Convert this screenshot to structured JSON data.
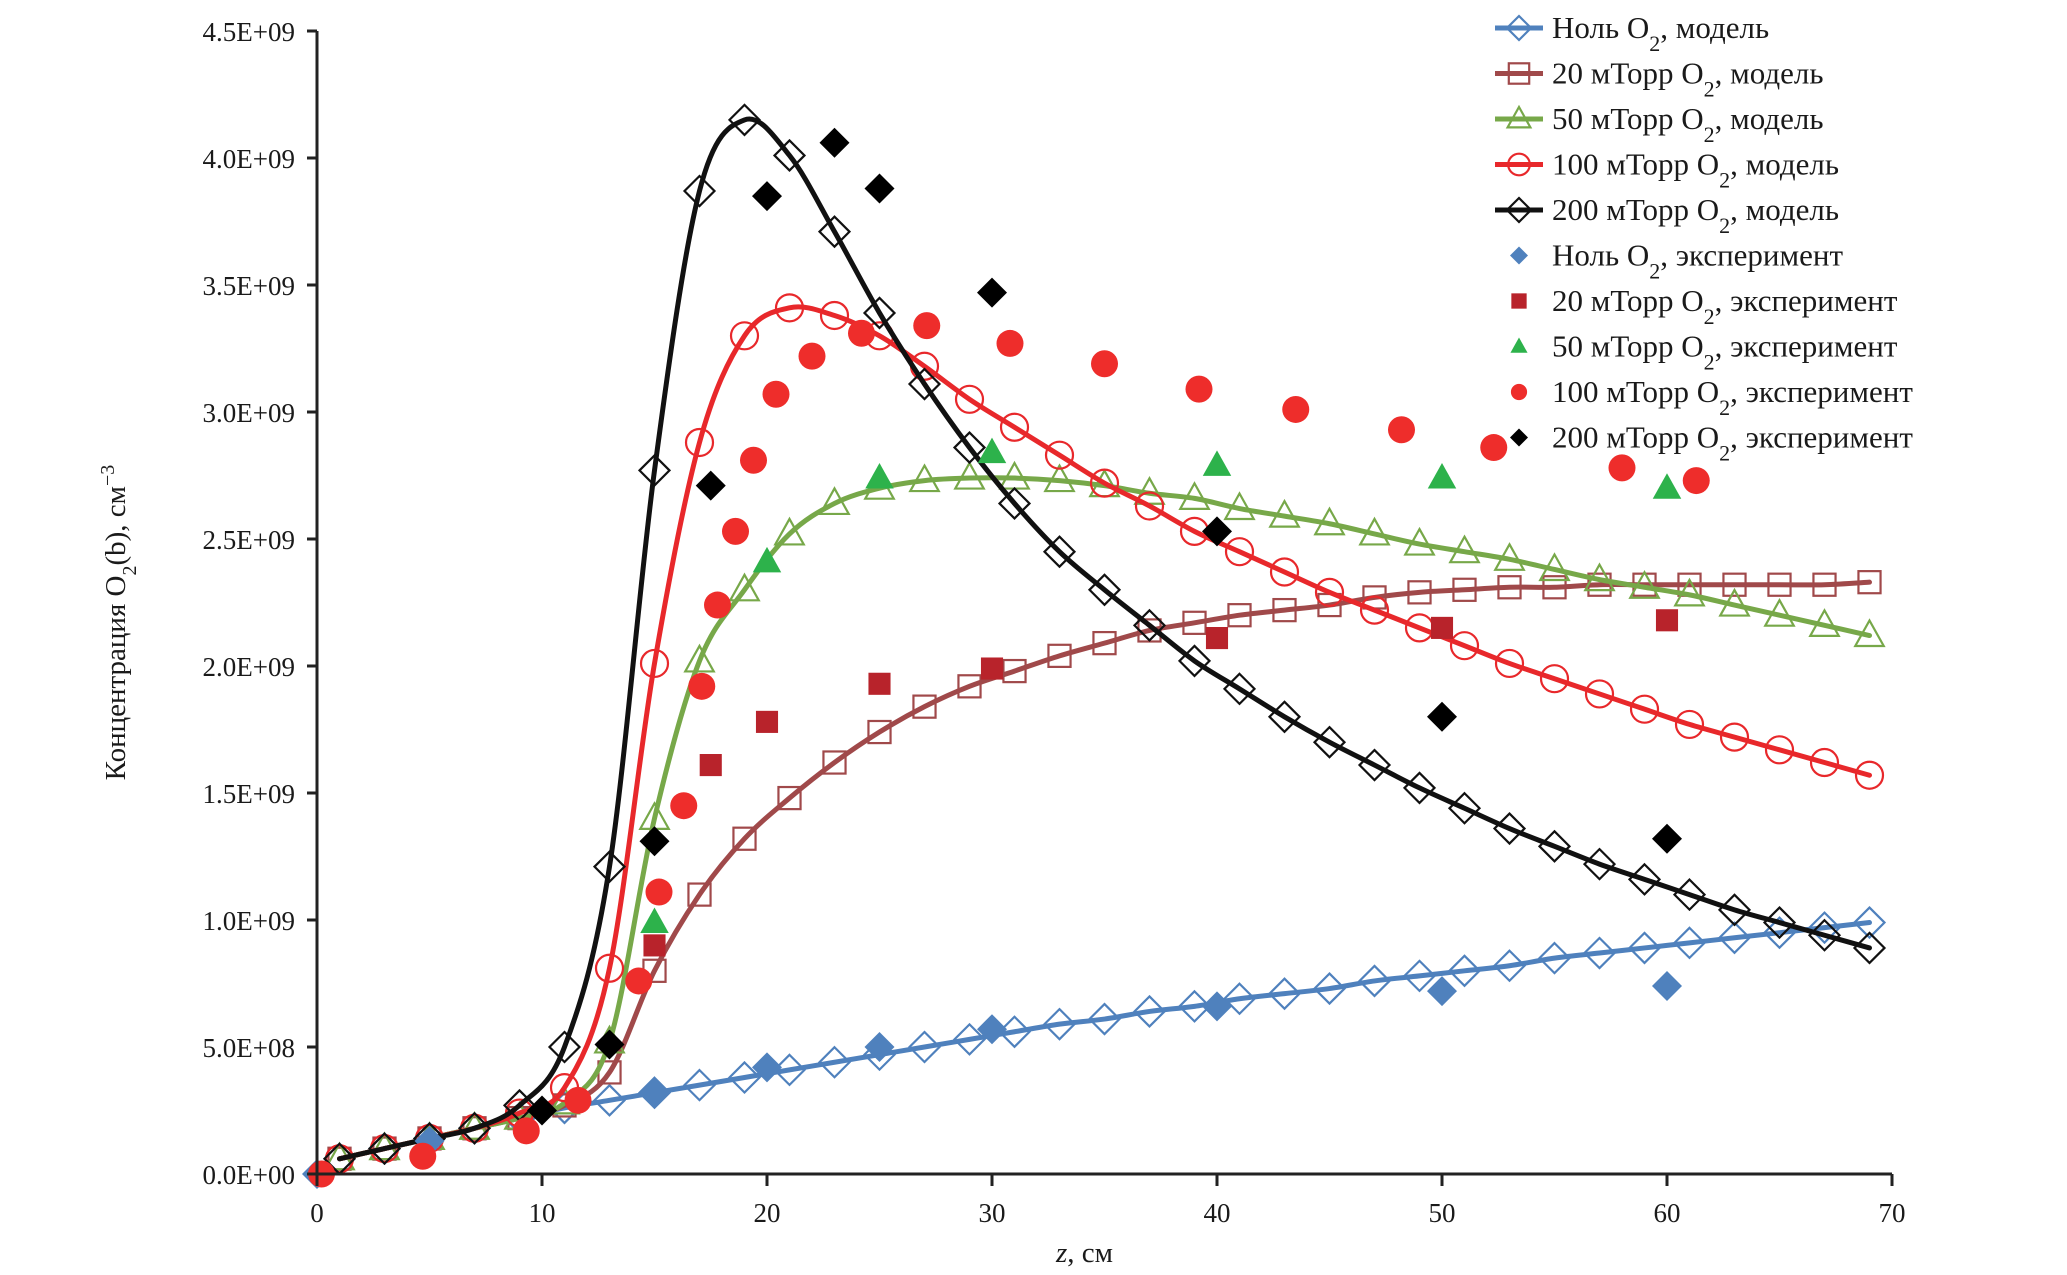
{
  "chart_data": {
    "type": "line",
    "title": "",
    "xlabel": "z, см",
    "xlabel_italic_part": "z",
    "ylabel": "Концентрация O2(b), см−3",
    "xlim": [
      0,
      70
    ],
    "ylim": [
      0,
      4500000000
    ],
    "x_ticks": [
      0,
      10,
      20,
      30,
      40,
      50,
      60,
      70
    ],
    "x_tick_labels": [
      "0",
      "10",
      "20",
      "30",
      "40",
      "50",
      "60",
      "70"
    ],
    "y_ticks": [
      0,
      500000000,
      1000000000,
      1500000000,
      2000000000,
      2500000000,
      3000000000,
      3500000000,
      4000000000,
      4500000000
    ],
    "y_tick_labels": [
      "0.0E+00",
      "5.0E+08",
      "1.0E+09",
      "1.5E+09",
      "2.0E+09",
      "2.5E+09",
      "3.0E+09",
      "3.5E+09",
      "4.0E+09",
      "4.5E+09"
    ],
    "grid": false,
    "legend_position": "top-right",
    "series": [
      {
        "name": "Ноль O2, модель",
        "label_prefix": "Ноль O",
        "label_sub": "2",
        "label_suffix": ", модель",
        "kind": "model",
        "marker": "diamond-open",
        "color": "#4f81bd",
        "x": [
          1,
          3,
          5,
          7,
          9,
          11,
          13,
          15,
          17,
          19,
          21,
          23,
          25,
          27,
          29,
          31,
          33,
          35,
          37,
          39,
          41,
          43,
          45,
          47,
          49,
          51,
          53,
          55,
          57,
          59,
          61,
          63,
          65,
          67,
          69
        ],
        "y": [
          60000000.0,
          100000000.0,
          140000000.0,
          180000000.0,
          220000000.0,
          260000000.0,
          290000000.0,
          320000000.0,
          350000000.0,
          380000000.0,
          410000000.0,
          440000000.0,
          470000000.0,
          500000000.0,
          530000000.0,
          560000000.0,
          590000000.0,
          610000000.0,
          640000000.0,
          660000000.0,
          690000000.0,
          710000000.0,
          730000000.0,
          760000000.0,
          780000000.0,
          800000000.0,
          820000000.0,
          850000000.0,
          870000000.0,
          890000000.0,
          910000000.0,
          930000000.0,
          950000000.0,
          970000000.0,
          990000000.0
        ]
      },
      {
        "name": "20 мТорр O2, модель",
        "label_prefix": "20 мТорр O",
        "label_sub": "2",
        "label_suffix": ", модель",
        "kind": "model",
        "marker": "square-open",
        "color": "#a0494a",
        "x": [
          1,
          3,
          5,
          7,
          9,
          11,
          13,
          15,
          17,
          19,
          21,
          23,
          25,
          27,
          29,
          31,
          33,
          35,
          37,
          39,
          41,
          43,
          45,
          47,
          49,
          51,
          53,
          55,
          57,
          59,
          61,
          63,
          65,
          67,
          69
        ],
        "y": [
          60000000.0,
          100000000.0,
          140000000.0,
          180000000.0,
          220000000.0,
          270000000.0,
          400000000.0,
          800000000.0,
          1100000000.0,
          1320000000.0,
          1480000000.0,
          1620000000.0,
          1740000000.0,
          1840000000.0,
          1920000000.0,
          1980000000.0,
          2040000000.0,
          2090000000.0,
          2140000000.0,
          2170000000.0,
          2200000000.0,
          2220000000.0,
          2240000000.0,
          2270000000.0,
          2290000000.0,
          2300000000.0,
          2310000000.0,
          2310000000.0,
          2320000000.0,
          2320000000.0,
          2320000000.0,
          2320000000.0,
          2320000000.0,
          2320000000.0,
          2330000000.0
        ]
      },
      {
        "name": "50 мТорр O2, модель",
        "label_prefix": "50 мТорр O",
        "label_sub": "2",
        "label_suffix": ", модель",
        "kind": "model",
        "marker": "triangle-open",
        "color": "#77a849",
        "x": [
          1,
          3,
          5,
          7,
          9,
          11,
          13,
          15,
          17,
          19,
          21,
          23,
          25,
          27,
          29,
          31,
          33,
          35,
          37,
          39,
          41,
          43,
          45,
          47,
          49,
          51,
          53,
          55,
          57,
          59,
          61,
          63,
          65,
          67,
          69
        ],
        "y": [
          60000000.0,
          100000000.0,
          140000000.0,
          180000000.0,
          220000000.0,
          280000000.0,
          520000000.0,
          1400000000.0,
          2020000000.0,
          2300000000.0,
          2520000000.0,
          2640000000.0,
          2700000000.0,
          2730000000.0,
          2740000000.0,
          2740000000.0,
          2730000000.0,
          2710000000.0,
          2680000000.0,
          2660000000.0,
          2620000000.0,
          2590000000.0,
          2560000000.0,
          2520000000.0,
          2480000000.0,
          2450000000.0,
          2420000000.0,
          2380000000.0,
          2340000000.0,
          2310000000.0,
          2280000000.0,
          2240000000.0,
          2200000000.0,
          2160000000.0,
          2120000000.0
        ]
      },
      {
        "name": "100 мТорр O2, модель",
        "label_prefix": "100 мТорр O",
        "label_sub": "2",
        "label_suffix": ", модель",
        "kind": "model",
        "marker": "circle-open",
        "color": "#e8282b",
        "x": [
          1,
          3,
          5,
          7,
          9,
          11,
          13,
          15,
          17,
          19,
          21,
          23,
          25,
          27,
          29,
          31,
          33,
          35,
          37,
          39,
          41,
          43,
          45,
          47,
          49,
          51,
          53,
          55,
          57,
          59,
          61,
          63,
          65,
          67,
          69
        ],
        "y": [
          60000000.0,
          100000000.0,
          140000000.0,
          180000000.0,
          240000000.0,
          340000000.0,
          810000000.0,
          2010000000.0,
          2880000000.0,
          3300000000.0,
          3410000000.0,
          3380000000.0,
          3300000000.0,
          3180000000.0,
          3050000000.0,
          2940000000.0,
          2830000000.0,
          2720000000.0,
          2630000000.0,
          2530000000.0,
          2450000000.0,
          2370000000.0,
          2290000000.0,
          2220000000.0,
          2150000000.0,
          2080000000.0,
          2010000000.0,
          1950000000.0,
          1890000000.0,
          1830000000.0,
          1770000000.0,
          1720000000.0,
          1670000000.0,
          1620000000.0,
          1570000000.0
        ]
      },
      {
        "name": "200 мТорр O2, модель",
        "label_prefix": "200 мТорр O",
        "label_sub": "2",
        "label_suffix": ", модель",
        "kind": "model",
        "marker": "diamond-open",
        "color": "#111111",
        "x": [
          1,
          3,
          5,
          7,
          9,
          11,
          13,
          15,
          17,
          19,
          21,
          23,
          25,
          27,
          29,
          31,
          33,
          35,
          37,
          39,
          41,
          43,
          45,
          47,
          49,
          51,
          53,
          55,
          57,
          59,
          61,
          63,
          65,
          67,
          69
        ],
        "y": [
          60000000.0,
          100000000.0,
          140000000.0,
          180000000.0,
          270000000.0,
          500000000.0,
          1210000000.0,
          2770000000.0,
          3870000000.0,
          4150000000.0,
          4010000000.0,
          3710000000.0,
          3390000000.0,
          3110000000.0,
          2860000000.0,
          2640000000.0,
          2450000000.0,
          2300000000.0,
          2160000000.0,
          2020000000.0,
          1910000000.0,
          1800000000.0,
          1700000000.0,
          1610000000.0,
          1520000000.0,
          1440000000.0,
          1360000000.0,
          1290000000.0,
          1220000000.0,
          1160000000.0,
          1100000000.0,
          1040000000.0,
          990000000.0,
          940000000.0,
          890000000.0
        ]
      },
      {
        "name": "Ноль O2, эксперимент",
        "label_prefix": "Ноль O",
        "label_sub": "2",
        "label_suffix": ", эксперимент",
        "kind": "experiment",
        "marker": "diamond-filled",
        "color": "#4f81bd",
        "x": [
          0,
          5,
          15,
          20,
          25,
          30,
          40,
          50,
          60
        ],
        "y": [
          0.0,
          130000000.0,
          320000000.0,
          420000000.0,
          500000000.0,
          570000000.0,
          660000000.0,
          720000000.0,
          740000000.0
        ]
      },
      {
        "name": "20 мТорр O2, эксперимент",
        "label_prefix": "20 мТорр O",
        "label_sub": "2",
        "label_suffix": ", эксперимент",
        "kind": "experiment",
        "marker": "square-filled",
        "color": "#b8232b",
        "x": [
          15,
          17.5,
          20,
          25,
          30,
          40,
          50,
          60
        ],
        "y": [
          900000000.0,
          1610000000.0,
          1780000000.0,
          1930000000.0,
          1990000000.0,
          2110000000.0,
          2150000000.0,
          2180000000.0
        ]
      },
      {
        "name": "50 мТорр O2, эксперимент",
        "label_prefix": "50 мТорр O",
        "label_sub": "2",
        "label_suffix": ", эксперимент",
        "kind": "experiment",
        "marker": "triangle-filled",
        "color": "#2db24b",
        "x": [
          15,
          20,
          25,
          30,
          40,
          50,
          60
        ],
        "y": [
          990000000.0,
          2410000000.0,
          2740000000.0,
          2840000000.0,
          2790000000.0,
          2740000000.0,
          2700000000.0
        ]
      },
      {
        "name": "100 мТорр O2, эксперимент",
        "label_prefix": "100 мТорр O",
        "label_sub": "2",
        "label_suffix": ", эксперимент",
        "kind": "experiment",
        "marker": "circle-filled",
        "color": "#ee2d2b",
        "x": [
          0.2,
          4.7,
          9.3,
          11.6,
          14.3,
          15.2,
          16.3,
          17.1,
          17.8,
          18.6,
          19.4,
          20.4,
          22.0,
          24.2,
          27.1,
          30.8,
          35.0,
          39.2,
          43.5,
          48.2,
          52.3,
          58.0,
          61.3
        ],
        "y": [
          0.0,
          70000000.0,
          170000000.0,
          290000000.0,
          760000000.0,
          1110000000.0,
          1450000000.0,
          1920000000.0,
          2240000000.0,
          2530000000.0,
          2810000000.0,
          3070000000.0,
          3220000000.0,
          3310000000.0,
          3340000000.0,
          3270000000.0,
          3190000000.0,
          3090000000.0,
          3010000000.0,
          2930000000.0,
          2860000000.0,
          2780000000.0,
          2730000000.0
        ]
      },
      {
        "name": "200 мТорр O2, эксперимент",
        "label_prefix": "200 мТорр O",
        "label_sub": "2",
        "label_suffix": ", эксперимент",
        "kind": "experiment",
        "marker": "diamond-filled",
        "color": "#000000",
        "x": [
          10,
          13,
          15,
          17.5,
          20,
          23,
          25,
          30,
          40,
          50,
          60
        ],
        "y": [
          250000000.0,
          510000000.0,
          1310000000.0,
          2710000000.0,
          3850000000.0,
          4060000000.0,
          3880000000.0,
          3470000000.0,
          2530000000.0,
          1800000000.0,
          1320000000.0
        ]
      }
    ]
  }
}
